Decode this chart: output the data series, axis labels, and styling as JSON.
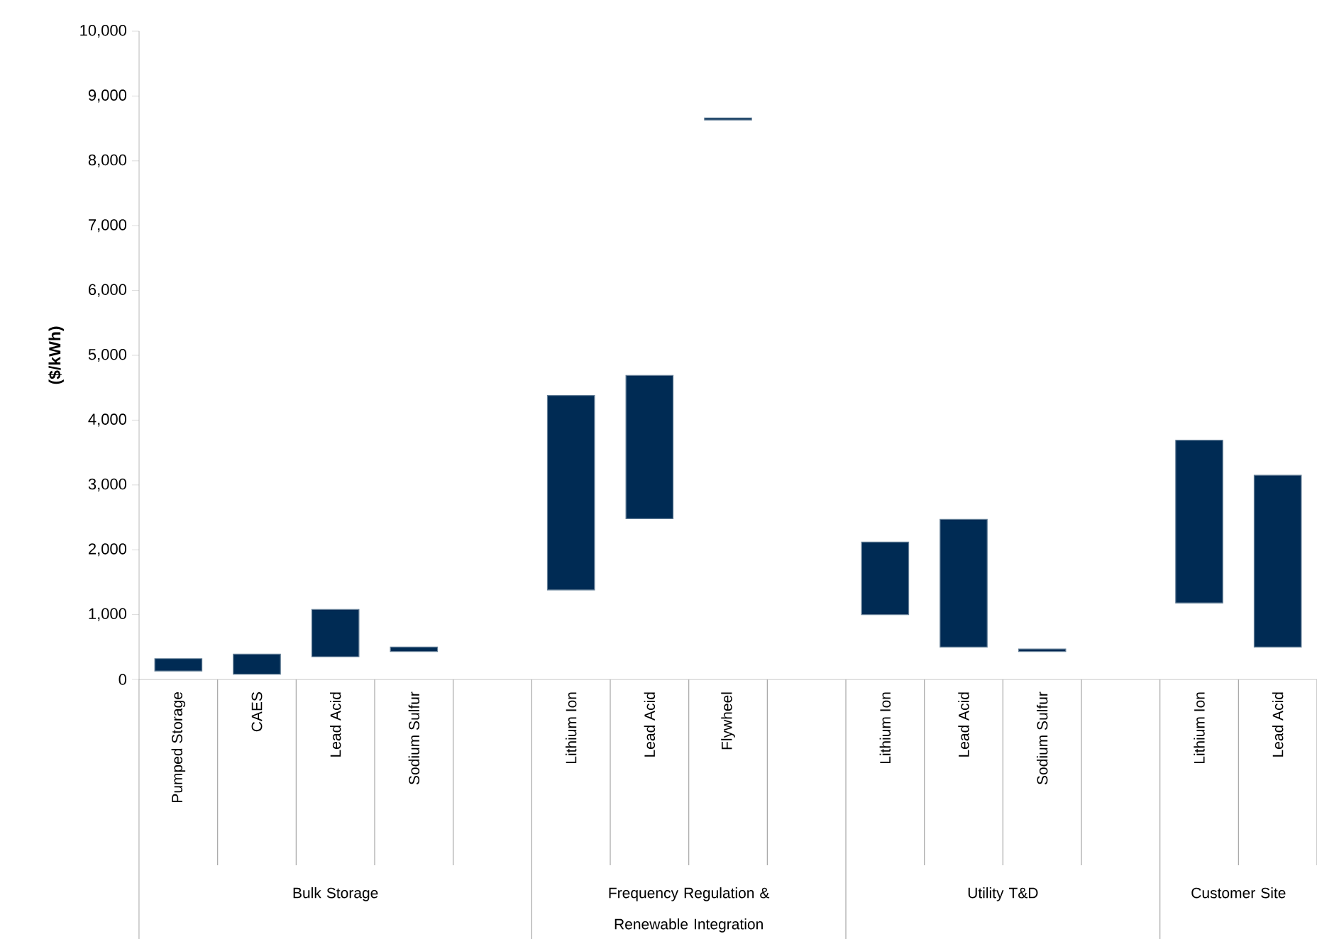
{
  "chart_data": {
    "type": "bar",
    "ylabel": "**($/kWh)**",
    "categories": [
      "Pumped Storage",
      "CAES",
      "Lead Acid",
      "Sodium Sulfur",
      null,
      "Lithium Ion",
      "Lead Acid",
      "Flywheel",
      null,
      "Lithium Ion",
      "Lead Acid",
      "Sodium Sulfur",
      null,
      "Lithium Ion",
      "Lead Acid"
    ],
    "base": [
      130,
      80,
      350,
      430,
      null,
      1380,
      2480,
      8630,
      null,
      1000,
      500,
      430,
      null,
      1180,
      500
    ],
    "values": [
      190,
      310,
      730,
      70,
      null,
      3000,
      2210,
      30,
      null,
      1120,
      1970,
      40,
      null,
      2510,
      2650
    ],
    "color": "#002b54",
    "ylim": [
      0,
      10000
    ],
    "yticks": [
      0,
      {
        "value": 1000,
        "label": "1,000"
      },
      {
        "value": 2000,
        "label": "2,000"
      },
      {
        "value": 3000,
        "label": "3,000"
      },
      {
        "value": 4000,
        "label": "4,000"
      },
      {
        "value": 5000,
        "label": "5,000"
      },
      {
        "value": 6000,
        "label": "6,000"
      },
      {
        "value": 7000,
        "label": "7,000"
      },
      {
        "value": 8000,
        "label": "8,000"
      },
      {
        "value": 9000,
        "label": "9,000"
      },
      {
        "value": 10000,
        "label": "10,000"
      }
    ],
    "annotations": [
      "Bulk Storage",
      "Frequency Regulation & Renewable Integration",
      "Utility T&D",
      "Customer Site"
    ]
  }
}
